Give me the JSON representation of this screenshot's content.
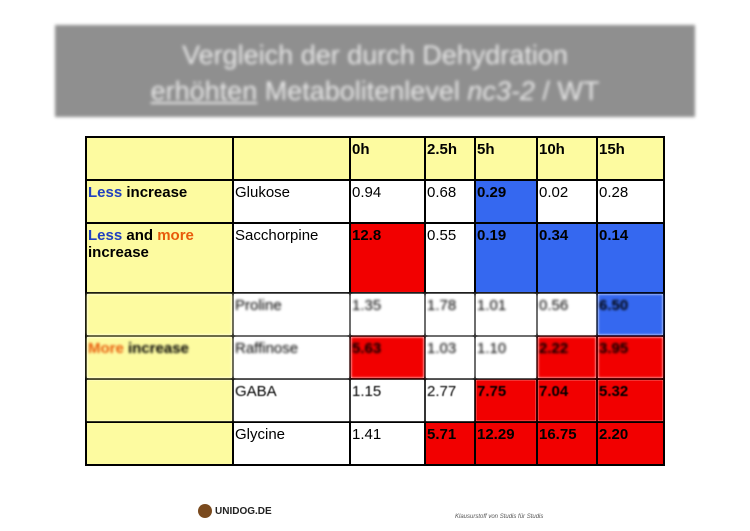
{
  "title": {
    "line1": "Vergleich der durch Dehydration",
    "line2_underlined": "erhöhten",
    "line2_middle": " Metabolitenlevel ",
    "line2_italic": "nc3-2",
    "line2_end": " / WT"
  },
  "table": {
    "headers": [
      "",
      "",
      "0h",
      "2.5h",
      "5h",
      "10h",
      "15h"
    ],
    "category_less": {
      "part1": "Less",
      "part2": " increase"
    },
    "category_less_more": {
      "part1": "Less",
      "part2": " and ",
      "part3": "more",
      "part4": " increase"
    },
    "category_more": {
      "part1": "More",
      "part2": " increase"
    },
    "rows": [
      {
        "name": "Glukose",
        "values": [
          "0.94",
          "0.68",
          "0.29",
          "0.02",
          "0.28"
        ]
      },
      {
        "name": "Sacchorpine",
        "values": [
          "12.8",
          "0.55",
          "0.19",
          "0.34",
          "0.14"
        ]
      },
      {
        "name": "Proline",
        "values": [
          "1.35",
          "1.78",
          "1.01",
          "0.56",
          "6.50"
        ]
      },
      {
        "name": "Raffinose",
        "values": [
          "5.63",
          "1.03",
          "1.10",
          "2.22",
          "3.95"
        ]
      },
      {
        "name": "GABA",
        "values": [
          "1.15",
          "2.77",
          "7.75",
          "7.04",
          "5.32"
        ]
      },
      {
        "name": "Glycine",
        "values": [
          "1.41",
          "5.71",
          "12.29",
          "16.75",
          "2.20"
        ]
      }
    ]
  },
  "footer": {
    "logo": "UNIDOG.DE",
    "note": "Klausurstoff von Studis für Studis"
  },
  "colors": {
    "yellow": "#fdfba0",
    "red": "#f20000",
    "blue": "#3568f0",
    "title_bg": "#8f8f8f"
  }
}
